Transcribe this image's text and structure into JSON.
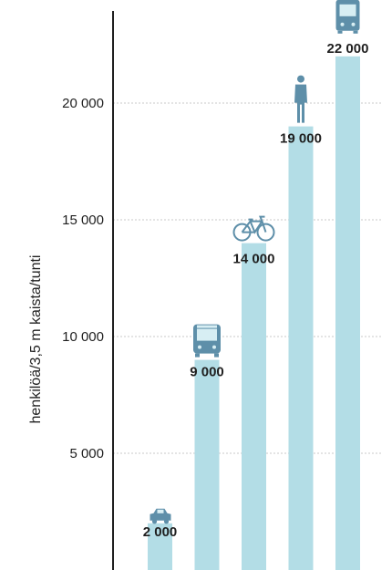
{
  "chart_data": {
    "type": "bar",
    "ylabel": "henkilöä/3,5 m kaista/tunti",
    "ylim": [
      0,
      24000
    ],
    "y_ticks": [
      5000,
      10000,
      15000,
      20000
    ],
    "y_tick_labels": [
      "5 000",
      "10 000",
      "15 000",
      "20 000"
    ],
    "grid": true,
    "categories": [
      "car",
      "bus",
      "bicycle",
      "pedestrian",
      "tram"
    ],
    "values": [
      2000,
      9000,
      14000,
      19000,
      22000
    ],
    "value_labels": [
      "2 000",
      "9 000",
      "14 000",
      "19 000",
      "22 000"
    ],
    "icons": [
      "car-icon",
      "bus-icon",
      "bicycle-icon",
      "pedestrian-icon",
      "tram-icon"
    ]
  },
  "colors": {
    "bar": "#b3dde6",
    "icon": "#5e8fa9",
    "icon_light": "#d7eef3",
    "grid": "#c9c9c9",
    "axis": "#1f1f1f",
    "text": "#1f1f1f"
  }
}
